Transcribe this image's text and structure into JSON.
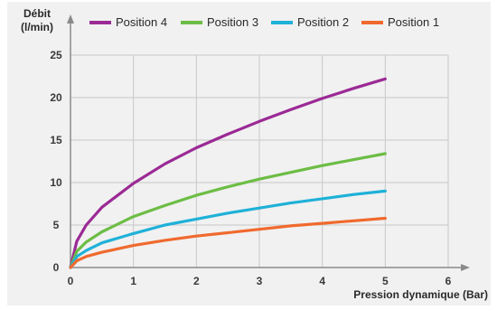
{
  "chart_data": {
    "type": "line",
    "ylabel_line1": "Débit",
    "ylabel_line2": "(l/min)",
    "xlabel": "Pression dynamique (Bar)",
    "xlim": [
      0,
      6
    ],
    "ylim": [
      0,
      25
    ],
    "x_ticks": [
      "0",
      "1",
      "2",
      "3",
      "4",
      "5",
      "6"
    ],
    "y_ticks": [
      "0",
      "5",
      "10",
      "15",
      "20",
      "25"
    ],
    "grid": true,
    "legend_position": "top",
    "x": [
      0,
      0.1,
      0.25,
      0.5,
      1,
      1.5,
      2,
      2.5,
      3,
      3.5,
      4,
      4.5,
      5
    ],
    "series": [
      {
        "name": "Position 4",
        "color": "#9b2a95",
        "values": [
          0,
          3.1,
          5.0,
          7.1,
          9.9,
          12.2,
          14.1,
          15.7,
          17.2,
          18.6,
          19.9,
          21.1,
          22.2
        ]
      },
      {
        "name": "Position 3",
        "color": "#6cbd45",
        "values": [
          0,
          1.9,
          3.0,
          4.2,
          6.0,
          7.3,
          8.5,
          9.5,
          10.4,
          11.2,
          12.0,
          12.7,
          13.4
        ]
      },
      {
        "name": "Position 2",
        "color": "#1fb1d8",
        "values": [
          0,
          1.3,
          2.0,
          2.9,
          4.0,
          5.0,
          5.7,
          6.4,
          7.0,
          7.6,
          8.1,
          8.6,
          9.0
        ]
      },
      {
        "name": "Position 1",
        "color": "#f06a2e",
        "values": [
          0,
          0.8,
          1.3,
          1.8,
          2.6,
          3.2,
          3.7,
          4.1,
          4.5,
          4.9,
          5.2,
          5.5,
          5.8
        ]
      }
    ]
  }
}
